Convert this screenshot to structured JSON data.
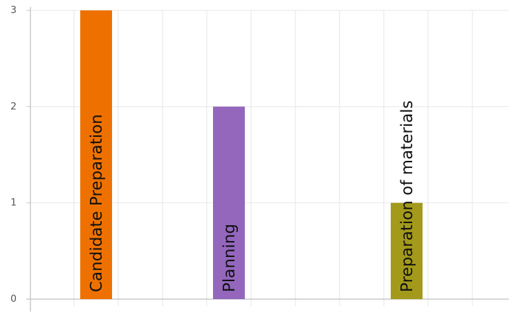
{
  "chart_data": {
    "type": "bar",
    "orientation": "vertical",
    "categories": [
      "Candidate Preparation",
      "Planning",
      "Preparation of materials"
    ],
    "values": [
      3,
      2,
      1
    ],
    "colors": [
      "#ee7100",
      "#9467bd",
      "#a39a1c"
    ],
    "y_ticks": [
      "0",
      "1",
      "2",
      "3"
    ],
    "ylim": [
      0,
      3
    ],
    "xlabel": "",
    "ylabel": "",
    "title": "",
    "grid": true,
    "legend": "none",
    "bar_labels": "inside-vertical"
  }
}
